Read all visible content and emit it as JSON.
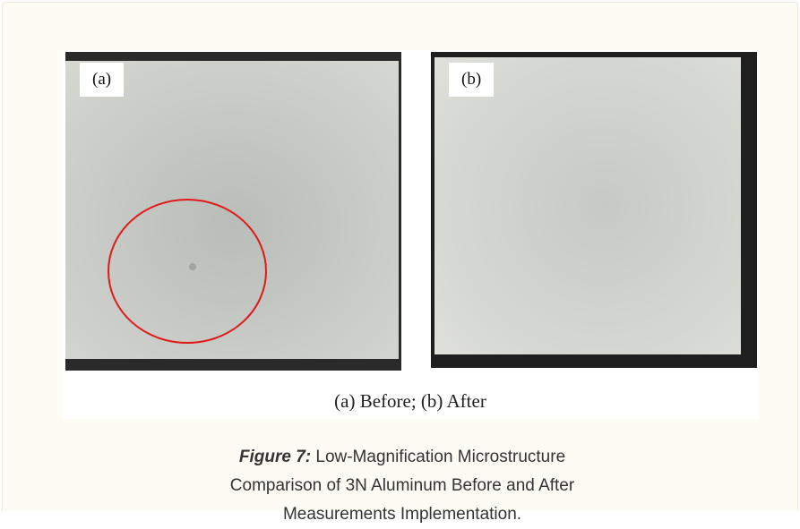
{
  "figure": {
    "panels": [
      {
        "label": "(a)"
      },
      {
        "label": "(b)"
      }
    ],
    "subcaption": "(a) Before; (b) After",
    "caption": {
      "label": "Figure 7:",
      "text": "Low-Magnification Microstructure Comparison of 3N Aluminum Before and After Measurements Implementation."
    }
  }
}
